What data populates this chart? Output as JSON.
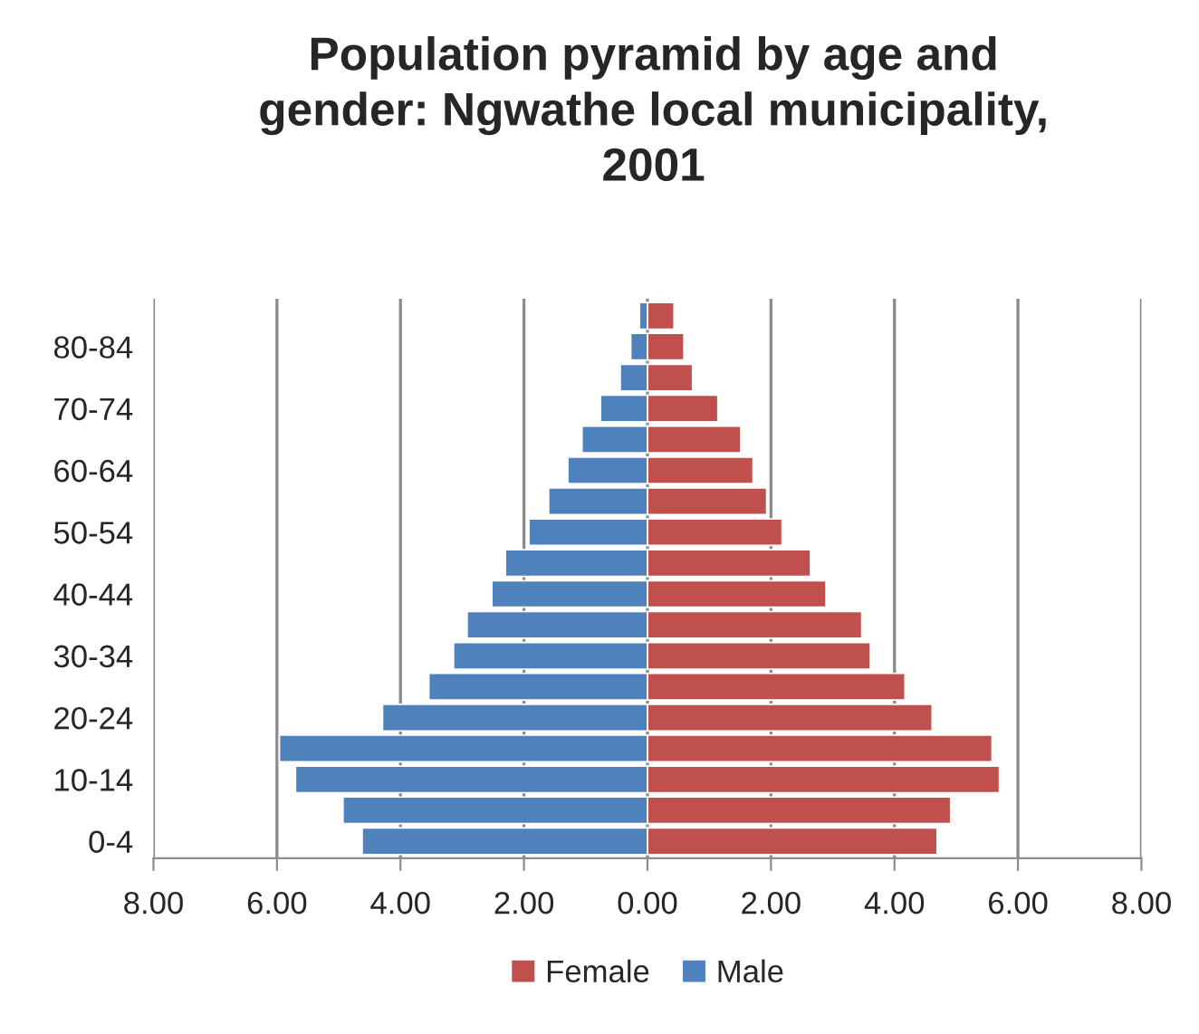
{
  "chart_data": {
    "type": "bar",
    "orientation": "horizontal",
    "stacked": true,
    "title": "Population pyramid by age and\ngender: Ngwathe local municipality,\n2001",
    "categories": [
      null,
      "80-84",
      null,
      "70-74",
      null,
      "60-64",
      null,
      "50-54",
      null,
      "40-44",
      null,
      "30-34",
      null,
      "20-24",
      null,
      "10-14",
      null,
      "0-4"
    ],
    "series": [
      {
        "name": "Female",
        "color": "#c0504d",
        "values": [
          0.43,
          0.59,
          0.73,
          1.14,
          1.51,
          1.71,
          1.93,
          2.18,
          2.64,
          2.89,
          3.47,
          3.61,
          4.17,
          4.61,
          5.58,
          5.7,
          4.91,
          4.69
        ]
      },
      {
        "name": "Male",
        "color": "#4f81bd",
        "values": [
          -0.13,
          -0.27,
          -0.44,
          -0.76,
          -1.06,
          -1.29,
          -1.6,
          -1.92,
          -2.3,
          -2.52,
          -2.92,
          -3.14,
          -3.54,
          -4.29,
          -5.96,
          -5.7,
          -4.93,
          -4.62
        ]
      }
    ],
    "xlim": [
      -8,
      8
    ],
    "xticks": [
      {
        "value": -8,
        "label": "8.00"
      },
      {
        "value": -6,
        "label": "6.00"
      },
      {
        "value": -4,
        "label": "4.00"
      },
      {
        "value": -2,
        "label": "2.00"
      },
      {
        "value": 0,
        "label": "0.00"
      },
      {
        "value": 2,
        "label": "2.00"
      },
      {
        "value": 4,
        "label": "4.00"
      },
      {
        "value": 6,
        "label": "6.00"
      },
      {
        "value": 8,
        "label": "8.00"
      }
    ],
    "grid": "x",
    "legend": "bottom"
  }
}
